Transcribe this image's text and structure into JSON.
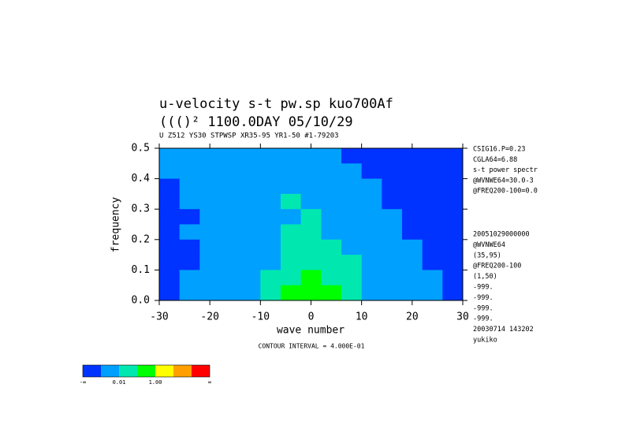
{
  "chart_data": {
    "type": "contour",
    "title": "u-velocity s-t pw.sp  kuo700Af",
    "title2": "((()²       1100.0DAY 05/10/29",
    "subtitle": "U Z512 YS30 STPWSP XR35-95 YR1-50      #1-79203",
    "xlabel": "wave number",
    "ylabel": "frequency",
    "footer": "CONTOUR INTERVAL = 4.000E-01",
    "xlim": [
      -30,
      30
    ],
    "ylim": [
      0,
      0.5
    ],
    "xticks": [
      -30,
      -20,
      -10,
      0,
      10,
      20,
      30
    ],
    "yticks": [
      {
        "value": 0,
        "label": "0.0"
      },
      0.1,
      0.2,
      0.3,
      0.4,
      0.5
    ],
    "x": [
      -28,
      -24,
      -20,
      -16,
      -12,
      -8,
      -4,
      0,
      4,
      8,
      12,
      16,
      20,
      24,
      28
    ],
    "y": [
      0.475,
      0.425,
      0.375,
      0.325,
      0.275,
      0.225,
      0.175,
      0.125,
      0.075,
      0.025
    ],
    "z": [
      [
        1,
        1,
        1,
        1,
        1,
        1,
        1,
        1,
        1,
        0,
        0,
        0,
        0,
        0,
        0
      ],
      [
        1,
        1,
        1,
        1,
        1,
        1,
        1,
        1,
        1,
        1,
        0,
        0,
        0,
        0,
        0
      ],
      [
        0,
        1,
        1,
        1,
        1,
        1,
        1,
        1,
        1,
        1,
        1,
        0,
        0,
        0,
        0
      ],
      [
        0,
        1,
        1,
        1,
        1,
        1,
        2,
        1,
        1,
        1,
        1,
        0,
        0,
        0,
        0
      ],
      [
        0,
        0,
        1,
        1,
        1,
        1,
        1,
        2,
        1,
        1,
        1,
        1,
        0,
        0,
        0
      ],
      [
        0,
        1,
        1,
        1,
        1,
        1,
        2,
        2,
        1,
        1,
        1,
        1,
        0,
        0,
        0
      ],
      [
        0,
        0,
        1,
        1,
        1,
        1,
        2,
        2,
        2,
        1,
        1,
        1,
        1,
        0,
        0
      ],
      [
        0,
        0,
        1,
        1,
        1,
        1,
        2,
        2,
        2,
        2,
        1,
        1,
        1,
        0,
        0
      ],
      [
        0,
        1,
        1,
        1,
        1,
        2,
        2,
        3,
        2,
        2,
        1,
        1,
        1,
        1,
        0
      ],
      [
        0,
        1,
        1,
        1,
        1,
        2,
        3,
        3,
        3,
        2,
        1,
        1,
        1,
        1,
        0
      ]
    ],
    "colorbar": {
      "colors": [
        "#0033ff",
        "#00a0ff",
        "#00e8b0",
        "#00ff00",
        "#ffff00",
        "#ffa000",
        "#ff0000"
      ],
      "labels": [
        "-∞",
        null,
        "0.01",
        null,
        "1.00",
        null,
        null,
        "∞"
      ]
    },
    "notes_top": [
      "CSIG16.P=0.23",
      "CGLA64=6.88",
      "s-t power spectr",
      "@WVNWE64=30.0-3",
      "@FREQ200-100=0.0"
    ],
    "notes_bottom": [
      "20051029000000",
      "@WVNWE64",
      "(35,95)",
      "@FREQ200-100",
      "(1,50)",
      "-999.",
      "-999.",
      "-999.",
      "-999.",
      "20030714 143202",
      "yukiko"
    ]
  }
}
